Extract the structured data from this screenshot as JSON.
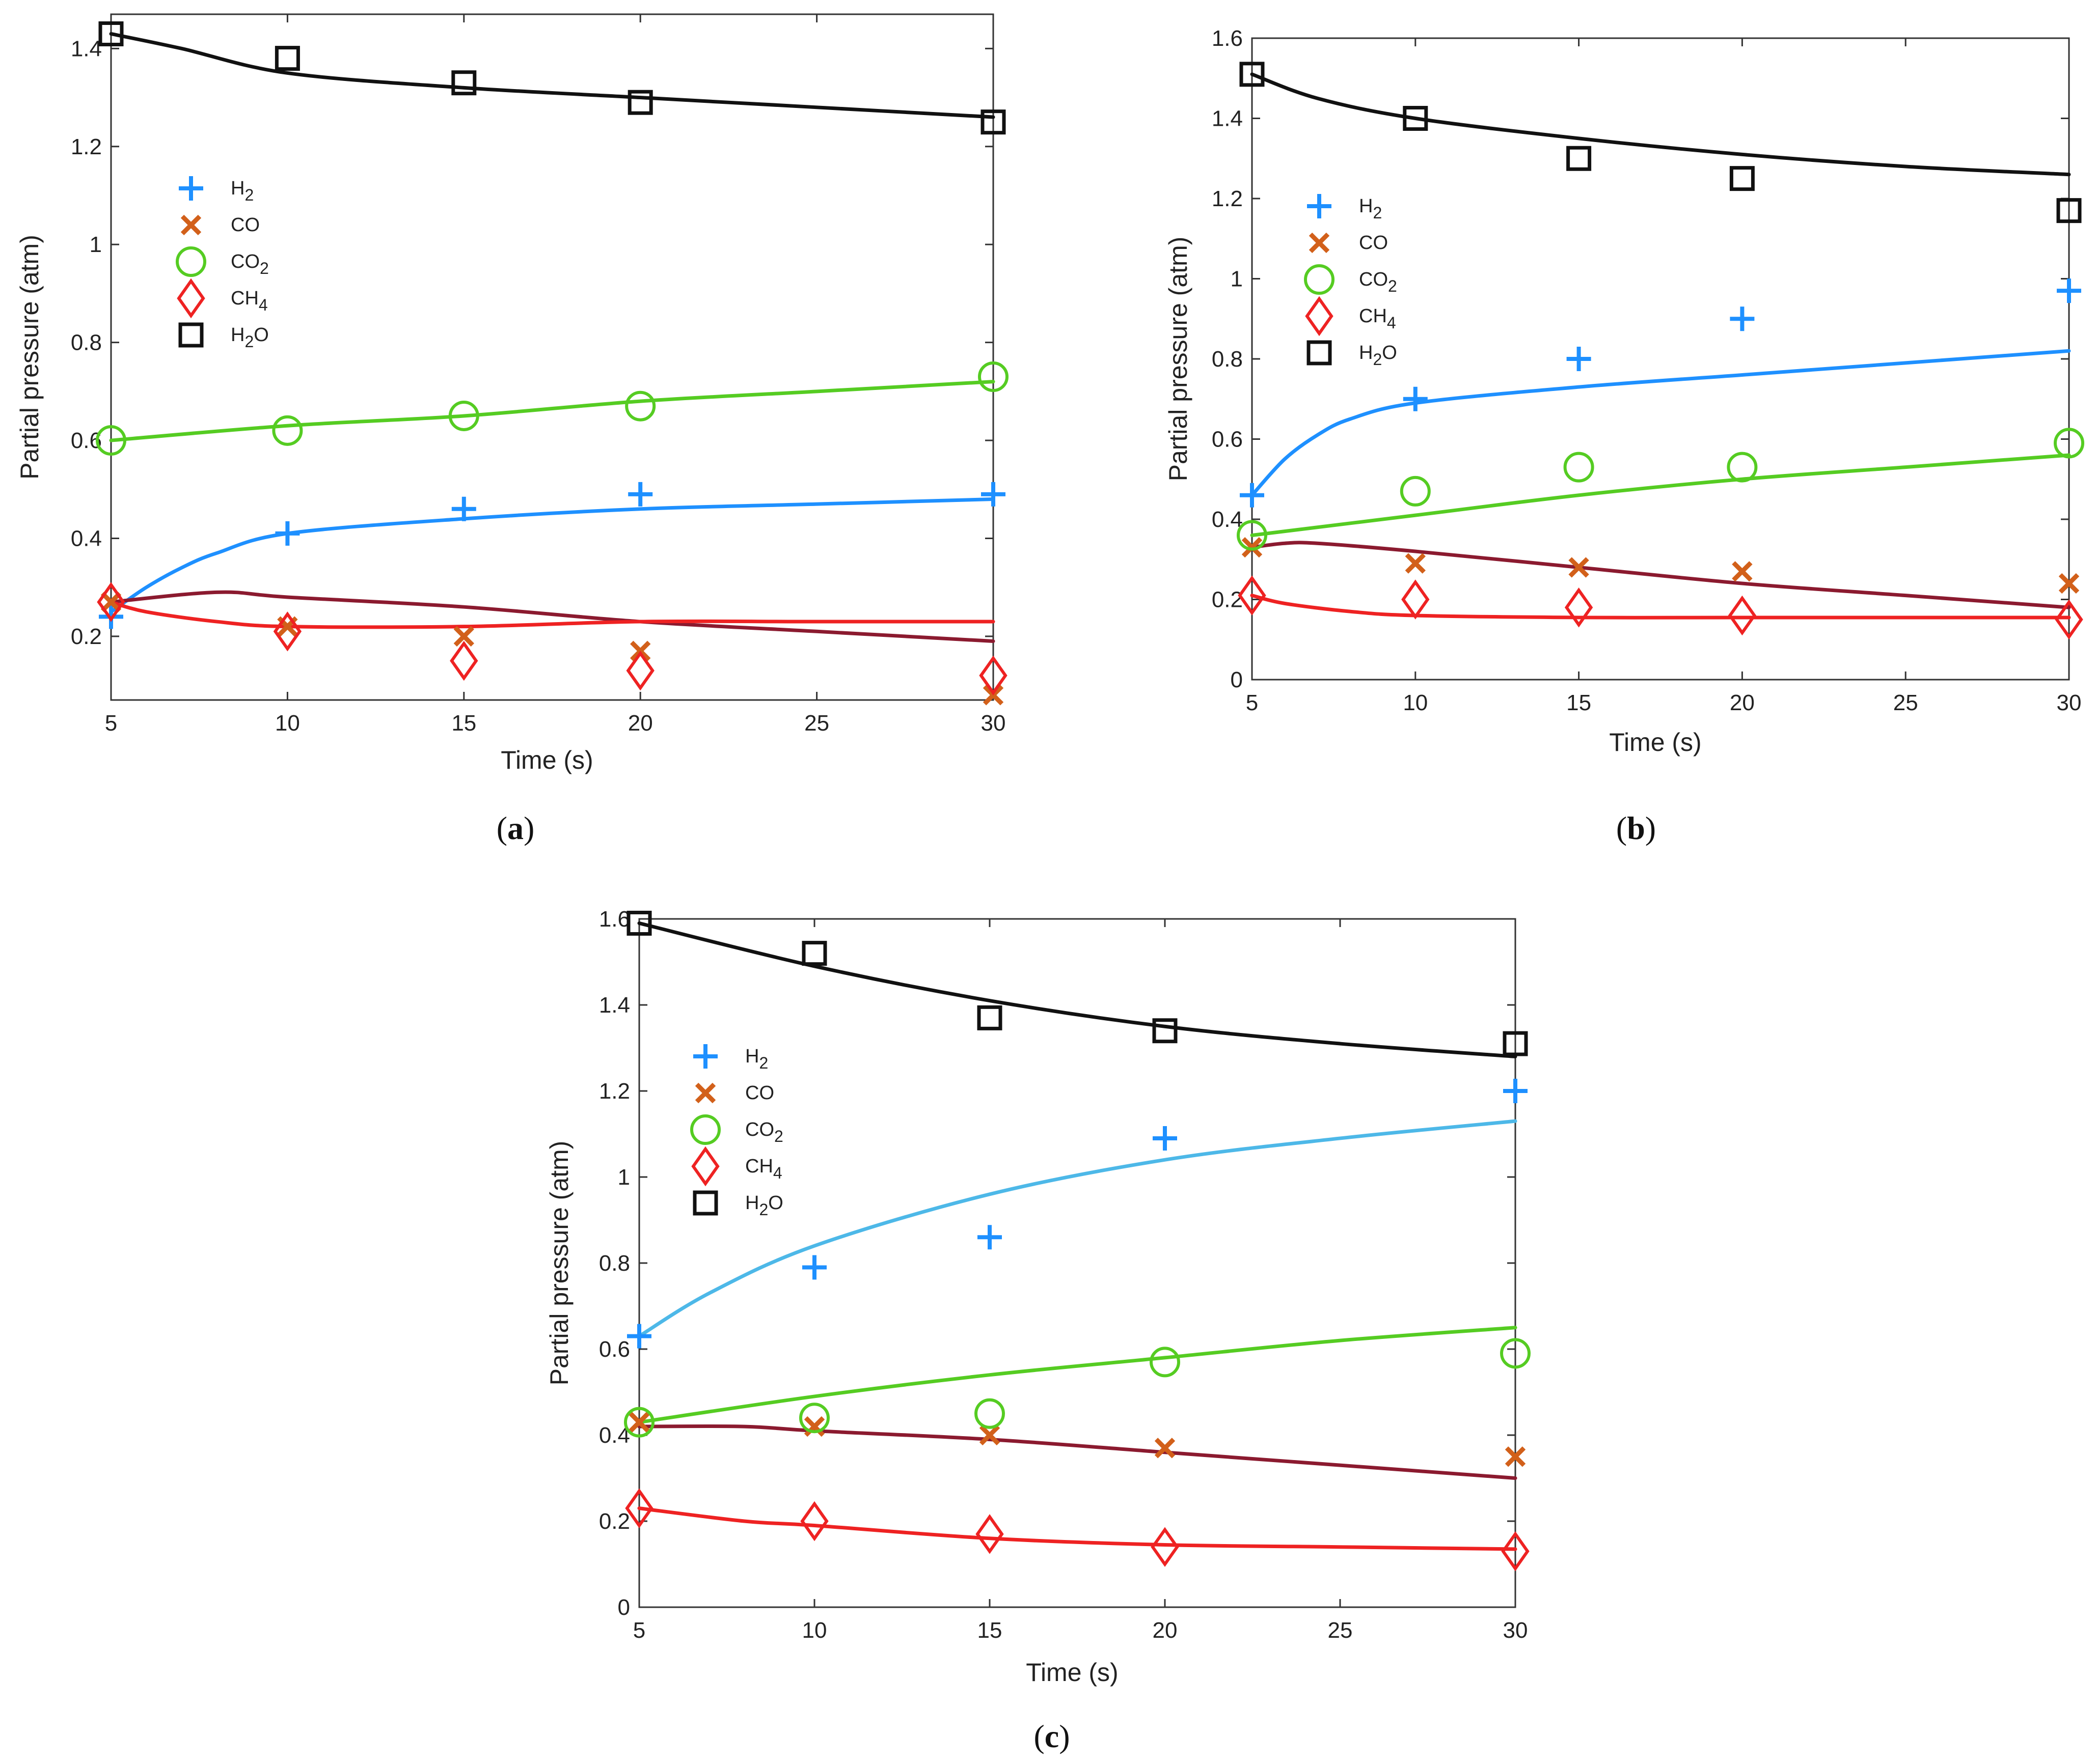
{
  "chart_data": [
    {
      "panel_label": "a",
      "type": "scatter",
      "xlabel": "Time (s)",
      "ylabel": "Partial pressure (atm)",
      "xlim": [
        5,
        30
      ],
      "ylim": [
        0.07,
        1.47
      ],
      "xticks": [
        5,
        10,
        15,
        20,
        25,
        30
      ],
      "yticks": [
        0.2,
        0.4,
        0.6,
        0.8,
        1.0,
        1.2,
        1.4
      ],
      "ytick_labels": [
        "0.2",
        "0.4",
        "0.6",
        "0.8",
        "1",
        "1.2",
        "1.4"
      ],
      "legend_position": "upper-left",
      "series": [
        {
          "name": "H",
          "sub": "2",
          "marker": "plus",
          "color": "#1e90ff",
          "x": [
            5,
            10,
            15,
            20,
            30
          ],
          "y": [
            0.24,
            0.41,
            0.46,
            0.49,
            0.49
          ]
        },
        {
          "name": "CO",
          "sub": "",
          "marker": "x",
          "color": "#d2601a",
          "x": [
            5,
            10,
            15,
            20,
            30
          ],
          "y": [
            0.27,
            0.22,
            0.2,
            0.17,
            0.08
          ]
        },
        {
          "name": "CO",
          "sub": "2",
          "marker": "circle",
          "color": "#55cc22",
          "x": [
            5,
            10,
            15,
            20,
            30
          ],
          "y": [
            0.6,
            0.62,
            0.65,
            0.67,
            0.73
          ]
        },
        {
          "name": "CH",
          "sub": "4",
          "marker": "diamond",
          "color": "#ee2222",
          "x": [
            5,
            10,
            15,
            20,
            30
          ],
          "y": [
            0.27,
            0.21,
            0.15,
            0.13,
            0.12
          ]
        },
        {
          "name": "H",
          "sub": "2",
          "name_after": "O",
          "marker": "square",
          "color": "#111111",
          "x": [
            5,
            10,
            15,
            20,
            30
          ],
          "y": [
            1.43,
            1.38,
            1.33,
            1.29,
            1.25
          ]
        }
      ],
      "curves": [
        {
          "color": "#111111",
          "x": [
            5,
            7,
            10,
            15,
            20,
            25,
            30
          ],
          "y": [
            1.43,
            1.4,
            1.35,
            1.32,
            1.3,
            1.28,
            1.26
          ]
        },
        {
          "color": "#55cc22",
          "x": [
            5,
            10,
            15,
            20,
            25,
            30
          ],
          "y": [
            0.6,
            0.63,
            0.65,
            0.68,
            0.7,
            0.72
          ]
        },
        {
          "color": "#1e90ff",
          "x": [
            5,
            6,
            7,
            8,
            10,
            15,
            20,
            25,
            30
          ],
          "y": [
            0.25,
            0.3,
            0.34,
            0.37,
            0.41,
            0.44,
            0.46,
            0.47,
            0.48
          ]
        },
        {
          "color": "#8b1a2f",
          "x": [
            5,
            8,
            10,
            15,
            20,
            25,
            30
          ],
          "y": [
            0.27,
            0.29,
            0.28,
            0.26,
            0.23,
            0.21,
            0.19
          ]
        },
        {
          "color": "#ee2222",
          "x": [
            5,
            6,
            8,
            10,
            15,
            20,
            25,
            30
          ],
          "y": [
            0.27,
            0.25,
            0.23,
            0.22,
            0.22,
            0.23,
            0.23,
            0.23
          ]
        }
      ]
    },
    {
      "panel_label": "b",
      "type": "scatter",
      "xlabel": "Time (s)",
      "ylabel": "Partial pressure (atm)",
      "xlim": [
        5,
        30
      ],
      "ylim": [
        0,
        1.6
      ],
      "xticks": [
        5,
        10,
        15,
        20,
        25,
        30
      ],
      "yticks": [
        0,
        0.2,
        0.4,
        0.6,
        0.8,
        1.0,
        1.2,
        1.4,
        1.6
      ],
      "ytick_labels": [
        "0",
        "0.2",
        "0.4",
        "0.6",
        "0.8",
        "1",
        "1.2",
        "1.4",
        "1.6"
      ],
      "legend_position": "upper-left",
      "series": [
        {
          "name": "H",
          "sub": "2",
          "marker": "plus",
          "color": "#1e90ff",
          "x": [
            5,
            10,
            15,
            20,
            30
          ],
          "y": [
            0.46,
            0.7,
            0.8,
            0.9,
            0.97
          ]
        },
        {
          "name": "CO",
          "sub": "",
          "marker": "x",
          "color": "#d2601a",
          "x": [
            5,
            10,
            15,
            20,
            30
          ],
          "y": [
            0.33,
            0.29,
            0.28,
            0.27,
            0.24
          ]
        },
        {
          "name": "CO",
          "sub": "2",
          "marker": "circle",
          "color": "#55cc22",
          "x": [
            5,
            10,
            15,
            20,
            30
          ],
          "y": [
            0.36,
            0.47,
            0.53,
            0.53,
            0.59
          ]
        },
        {
          "name": "CH",
          "sub": "4",
          "marker": "diamond",
          "color": "#ee2222",
          "x": [
            5,
            10,
            15,
            20,
            30
          ],
          "y": [
            0.21,
            0.2,
            0.18,
            0.16,
            0.15
          ]
        },
        {
          "name": "H",
          "sub": "2",
          "name_after": "O",
          "marker": "square",
          "color": "#111111",
          "x": [
            5,
            10,
            15,
            20,
            30
          ],
          "y": [
            1.51,
            1.4,
            1.3,
            1.25,
            1.17
          ]
        }
      ],
      "curves": [
        {
          "color": "#111111",
          "x": [
            5,
            7,
            10,
            15,
            20,
            25,
            30
          ],
          "y": [
            1.51,
            1.45,
            1.4,
            1.35,
            1.31,
            1.28,
            1.26
          ]
        },
        {
          "color": "#1e90ff",
          "x": [
            5,
            6,
            7,
            8,
            10,
            15,
            20,
            25,
            30
          ],
          "y": [
            0.46,
            0.55,
            0.61,
            0.65,
            0.69,
            0.73,
            0.76,
            0.79,
            0.82
          ]
        },
        {
          "color": "#55cc22",
          "x": [
            5,
            10,
            15,
            20,
            25,
            30
          ],
          "y": [
            0.36,
            0.41,
            0.46,
            0.5,
            0.53,
            0.56
          ]
        },
        {
          "color": "#8b1a2f",
          "x": [
            5,
            6,
            7,
            10,
            15,
            20,
            25,
            30
          ],
          "y": [
            0.33,
            0.34,
            0.34,
            0.32,
            0.28,
            0.24,
            0.21,
            0.18
          ]
        },
        {
          "color": "#ee2222",
          "x": [
            5,
            6,
            8,
            10,
            15,
            20,
            25,
            30
          ],
          "y": [
            0.21,
            0.19,
            0.17,
            0.16,
            0.155,
            0.155,
            0.155,
            0.155
          ]
        }
      ]
    },
    {
      "panel_label": "c",
      "type": "scatter",
      "xlabel": "Time (s)",
      "ylabel": "Partial pressure (atm)",
      "xlim": [
        5,
        30
      ],
      "ylim": [
        0,
        1.6
      ],
      "xticks": [
        5,
        10,
        15,
        20,
        25,
        30
      ],
      "yticks": [
        0,
        0.2,
        0.4,
        0.6,
        0.8,
        1.0,
        1.2,
        1.4,
        1.6
      ],
      "ytick_labels": [
        "0",
        "0.2",
        "0.4",
        "0.6",
        "0.8",
        "1",
        "1.2",
        "1.4",
        "1.6"
      ],
      "legend_position": "upper-left",
      "series": [
        {
          "name": "H",
          "sub": "2",
          "marker": "plus",
          "color": "#1e90ff",
          "x": [
            5,
            10,
            15,
            20,
            30
          ],
          "y": [
            0.63,
            0.79,
            0.86,
            1.09,
            1.2
          ]
        },
        {
          "name": "CO",
          "sub": "",
          "marker": "x",
          "color": "#d2601a",
          "x": [
            5,
            10,
            15,
            20,
            30
          ],
          "y": [
            0.43,
            0.42,
            0.4,
            0.37,
            0.35
          ]
        },
        {
          "name": "CO",
          "sub": "2",
          "marker": "circle",
          "color": "#55cc22",
          "x": [
            5,
            10,
            15,
            20,
            30
          ],
          "y": [
            0.43,
            0.44,
            0.45,
            0.57,
            0.59
          ]
        },
        {
          "name": "CH",
          "sub": "4",
          "marker": "diamond",
          "color": "#ee2222",
          "x": [
            5,
            10,
            15,
            20,
            30
          ],
          "y": [
            0.23,
            0.2,
            0.17,
            0.14,
            0.13
          ]
        },
        {
          "name": "H",
          "sub": "2",
          "name_after": "O",
          "marker": "square",
          "color": "#111111",
          "x": [
            5,
            10,
            15,
            20,
            30
          ],
          "y": [
            1.59,
            1.52,
            1.37,
            1.34,
            1.31
          ]
        }
      ],
      "curves": [
        {
          "color": "#111111",
          "x": [
            5,
            10,
            15,
            20,
            25,
            30
          ],
          "y": [
            1.59,
            1.49,
            1.41,
            1.35,
            1.31,
            1.28
          ]
        },
        {
          "color": "#4db8e8",
          "x": [
            5,
            7,
            10,
            15,
            20,
            25,
            30
          ],
          "y": [
            0.63,
            0.73,
            0.84,
            0.96,
            1.04,
            1.09,
            1.13
          ]
        },
        {
          "color": "#55cc22",
          "x": [
            5,
            10,
            15,
            20,
            25,
            30
          ],
          "y": [
            0.43,
            0.49,
            0.54,
            0.58,
            0.62,
            0.65
          ]
        },
        {
          "color": "#8b1a2f",
          "x": [
            5,
            8,
            10,
            15,
            20,
            25,
            30
          ],
          "y": [
            0.42,
            0.42,
            0.41,
            0.39,
            0.36,
            0.33,
            0.3
          ]
        },
        {
          "color": "#ee2222",
          "x": [
            5,
            8,
            10,
            15,
            20,
            25,
            30
          ],
          "y": [
            0.23,
            0.2,
            0.19,
            0.16,
            0.145,
            0.14,
            0.135
          ]
        }
      ]
    }
  ]
}
